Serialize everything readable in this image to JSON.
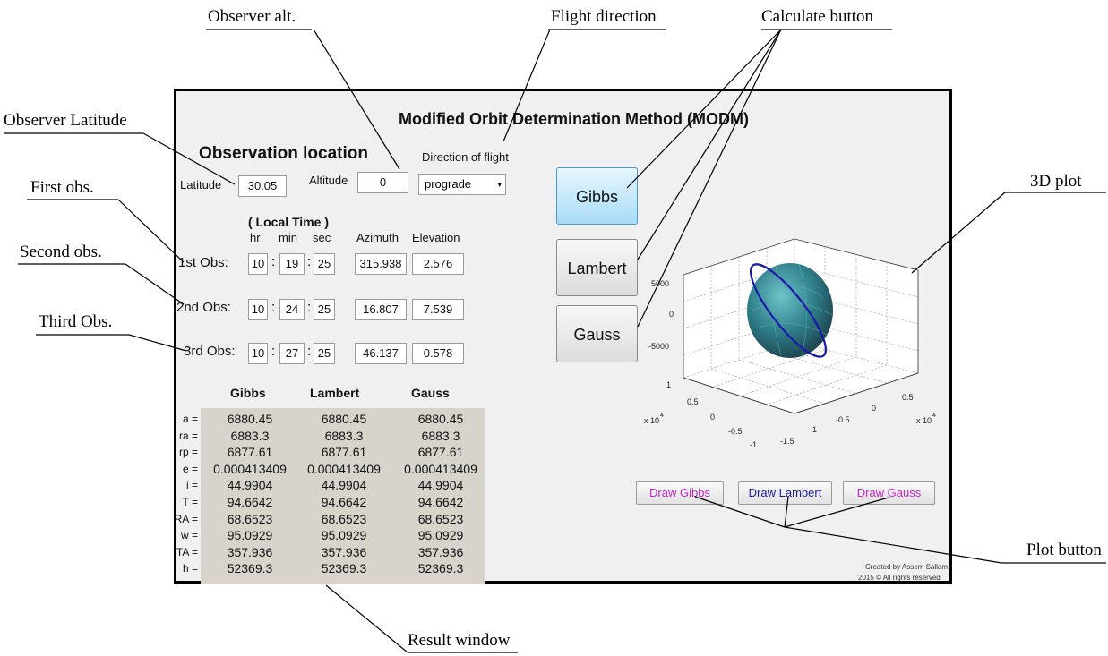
{
  "annotations": {
    "observer_alt": "Observer alt.",
    "flight_direction": "Flight direction",
    "calculate_button": "Calculate button",
    "observer_latitude": "Observer Latitude",
    "first_obs": "First obs.",
    "second_obs": "Second obs.",
    "third_obs": "Third Obs.",
    "plot_3d": "3D  plot",
    "plot_button": "Plot button",
    "result_window": "Result window"
  },
  "app": {
    "title": "Modified Orbit Determination Method (MODM)",
    "section_title": "Observation location",
    "latitude_label": "Latitude",
    "latitude_value": "30.05",
    "altitude_label": "Altitude",
    "altitude_value": "0",
    "direction_label": "Direction of flight",
    "direction_value": "prograde",
    "local_time_label": "( Local Time )",
    "hr_label": "hr",
    "min_label": "min",
    "sec_label": "sec",
    "azimuth_label": "Azimuth",
    "elevation_label": "Elevation",
    "observations": [
      {
        "label": "1st Obs:",
        "hr": "10",
        "min": "19",
        "sec": "25",
        "azimuth": "315.938",
        "elevation": "2.576"
      },
      {
        "label": "2nd Obs:",
        "hr": "10",
        "min": "24",
        "sec": "25",
        "azimuth": "16.807",
        "elevation": "7.539"
      },
      {
        "label": "3rd Obs:",
        "hr": "10",
        "min": "27",
        "sec": "25",
        "azimuth": "46.137",
        "elevation": "0.578"
      }
    ],
    "buttons": {
      "gibbs": "Gibbs",
      "lambert": "Lambert",
      "gauss": "Gauss"
    },
    "plot_buttons": {
      "draw_gibbs": "Draw Gibbs",
      "draw_lambert": "Draw Lambert",
      "draw_gauss": "Draw Gauss"
    },
    "plot_button_colors": {
      "gibbs": "#cc22cc",
      "lambert": "#1a1a99",
      "gauss": "#cc22cc"
    },
    "results": {
      "headers": [
        "Gibbs",
        "Lambert",
        "Gauss"
      ],
      "rows": [
        {
          "label": "a =",
          "values": [
            "6880.45",
            "6880.45",
            "6880.45"
          ]
        },
        {
          "label": "ra =",
          "values": [
            "6883.3",
            "6883.3",
            "6883.3"
          ]
        },
        {
          "label": "rp =",
          "values": [
            "6877.61",
            "6877.61",
            "6877.61"
          ]
        },
        {
          "label": "e =",
          "values": [
            "0.000413409",
            "0.000413409",
            "0.000413409"
          ]
        },
        {
          "label": "i =",
          "values": [
            "44.9904",
            "44.9904",
            "44.9904"
          ]
        },
        {
          "label": "T =",
          "values": [
            "94.6642",
            "94.6642",
            "94.6642"
          ]
        },
        {
          "label": "RA =",
          "values": [
            "68.6523",
            "68.6523",
            "68.6523"
          ]
        },
        {
          "label": "w =",
          "values": [
            "95.0929",
            "95.0929",
            "95.0929"
          ]
        },
        {
          "label": "TA =",
          "values": [
            "357.936",
            "357.936",
            "357.936"
          ]
        },
        {
          "label": "h =",
          "values": [
            "52369.3",
            "52369.3",
            "52369.3"
          ]
        }
      ]
    },
    "plot": {
      "z_ticks": [
        "5000",
        "0",
        "-5000"
      ],
      "left_ticks": [
        "1",
        "0.5",
        "0",
        "-0.5",
        "-1"
      ],
      "right_ticks": [
        "0.5",
        "0",
        "-0.5",
        "-1",
        "-1.5"
      ],
      "left_exp": "x 10",
      "right_exp": "x 10",
      "exp_power": "4"
    },
    "credit_line1": "Created by Assem Sallam",
    "credit_line2": "2015 © All rights reserved",
    "colors": {
      "panel_bg": "#f0f0f0",
      "results_bg": "#d8d4cb",
      "active_button": "#a9dcf6",
      "orbit": "#1a1aaa"
    }
  }
}
